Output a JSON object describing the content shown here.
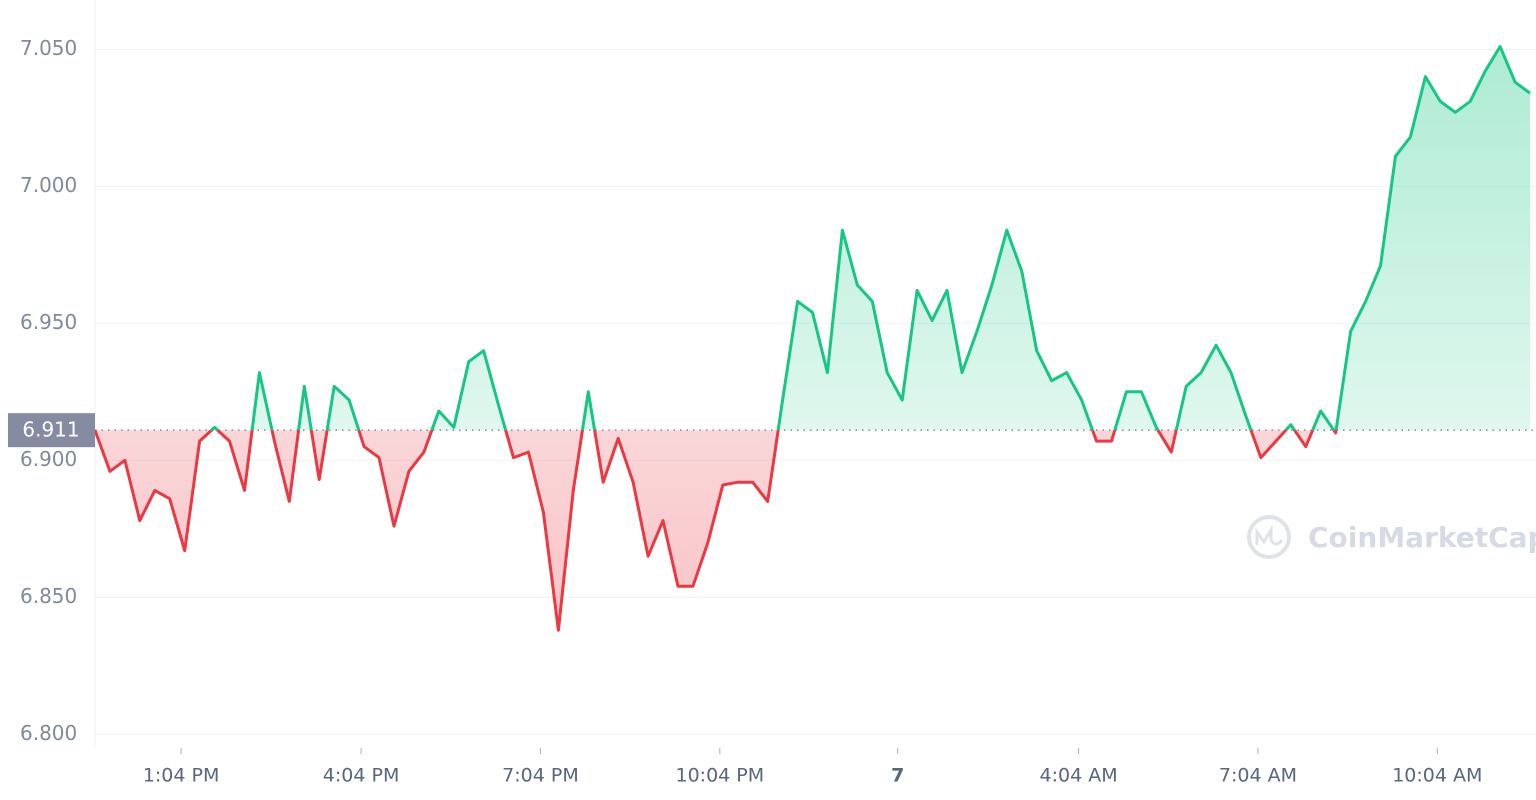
{
  "chart_data": {
    "type": "line",
    "baseline": 6.911,
    "watermark": "CoinMarketCap",
    "up_color": "#16c784",
    "down_color": "#ea3943",
    "grid": true,
    "xlim": [
      0,
      96
    ],
    "ylim": [
      6.795,
      7.068
    ],
    "yticks": [
      {
        "value": 6.8,
        "label": "6.800"
      },
      {
        "value": 6.85,
        "label": "6.850"
      },
      {
        "value": 6.9,
        "label": "6.900"
      },
      {
        "value": 6.95,
        "label": "6.950"
      },
      {
        "value": 7.0,
        "label": "7.000"
      },
      {
        "value": 7.05,
        "label": "7.050"
      }
    ],
    "xticks": [
      {
        "value": 5.76,
        "label": "1:04 PM"
      },
      {
        "value": 17.8,
        "label": "4:04 PM"
      },
      {
        "value": 29.8,
        "label": "7:04 PM"
      },
      {
        "value": 41.8,
        "label": "10:04 PM"
      },
      {
        "value": 53.7,
        "label": "7"
      },
      {
        "value": 65.8,
        "label": "4:04 AM"
      },
      {
        "value": 77.8,
        "label": "7:04 AM"
      },
      {
        "value": 89.8,
        "label": "10:04 AM"
      }
    ],
    "values": [
      6.911,
      6.896,
      6.9,
      6.878,
      6.889,
      6.886,
      6.867,
      6.907,
      6.912,
      6.907,
      6.889,
      6.932,
      6.907,
      6.885,
      6.927,
      6.893,
      6.927,
      6.922,
      6.905,
      6.901,
      6.876,
      6.896,
      6.903,
      6.918,
      6.912,
      6.936,
      6.94,
      6.92,
      6.901,
      6.903,
      6.881,
      6.838,
      6.889,
      6.925,
      6.892,
      6.908,
      6.892,
      6.865,
      6.878,
      6.854,
      6.854,
      6.87,
      6.891,
      6.892,
      6.892,
      6.885,
      6.922,
      6.958,
      6.954,
      6.932,
      6.984,
      6.964,
      6.958,
      6.932,
      6.922,
      6.962,
      6.951,
      6.962,
      6.932,
      6.947,
      6.964,
      6.984,
      6.969,
      6.94,
      6.929,
      6.932,
      6.922,
      6.907,
      6.907,
      6.925,
      6.925,
      6.912,
      6.903,
      6.927,
      6.932,
      6.942,
      6.932,
      6.916,
      6.901,
      6.907,
      6.913,
      6.905,
      6.918,
      6.91,
      6.947,
      6.958,
      6.971,
      7.011,
      7.018,
      7.04,
      7.031,
      7.027,
      7.031,
      7.042,
      7.051,
      7.038,
      7.034
    ]
  }
}
